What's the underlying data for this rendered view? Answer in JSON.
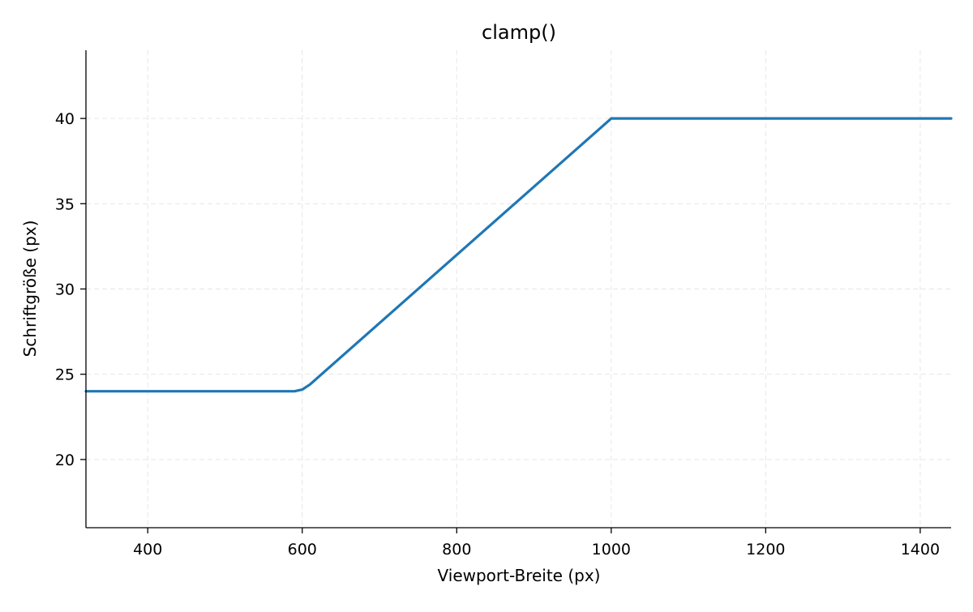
{
  "chart_data": {
    "type": "line",
    "title": "clamp()",
    "xlabel": "Viewport-Breite (px)",
    "ylabel": "Schriftgröße (px)",
    "xlim": [
      320,
      1440
    ],
    "ylim": [
      16,
      44
    ],
    "xticks": [
      400,
      600,
      800,
      1000,
      1200,
      1400
    ],
    "yticks": [
      20,
      25,
      30,
      35,
      40
    ],
    "grid": true,
    "series": [
      {
        "color": "#1f77b4",
        "x": [
          320,
          590,
          600,
          610,
          1000,
          1010,
          1440
        ],
        "y": [
          24,
          24,
          24.1,
          24.4,
          40,
          40,
          40
        ]
      }
    ]
  }
}
